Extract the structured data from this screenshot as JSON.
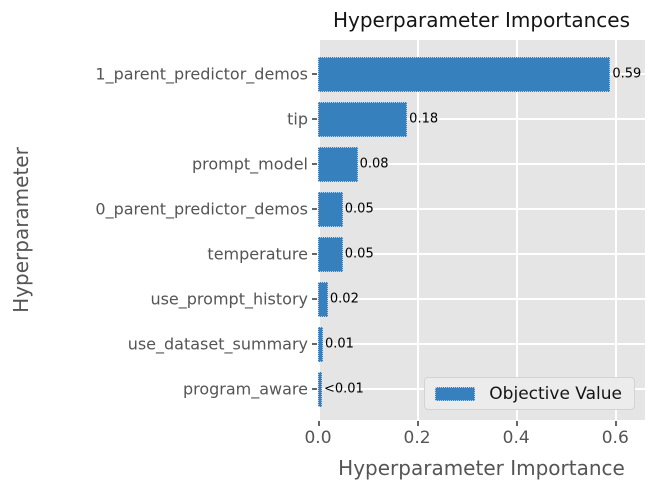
{
  "chart_data": {
    "type": "bar",
    "orientation": "horizontal",
    "title": "Hyperparameter Importances",
    "xlabel": "Hyperparameter Importance",
    "ylabel": "Hyperparameter",
    "categories": [
      "1_parent_predictor_demos",
      "tip",
      "prompt_model",
      "0_parent_predictor_demos",
      "temperature",
      "use_prompt_history",
      "use_dataset_summary",
      "program_aware"
    ],
    "values": [
      0.59,
      0.18,
      0.08,
      0.05,
      0.05,
      0.02,
      0.01,
      0.008
    ],
    "bar_labels": [
      "0.59",
      "0.18",
      "0.08",
      "0.05",
      "0.05",
      "0.02",
      "0.01",
      "<0.01"
    ],
    "x_ticks": {
      "labels": [
        "0.0",
        "0.2",
        "0.4",
        "0.6"
      ],
      "values": [
        0.0,
        0.2,
        0.4,
        0.6
      ]
    },
    "xlim": [
      0,
      0.66
    ],
    "grid": true,
    "legend": {
      "label": "Objective Value",
      "position": "lower-right"
    }
  },
  "colors": {
    "bar": "#3580bd",
    "plot_background": "#e5e5e5",
    "gridline": "#ffffff",
    "tick_text": "#555555",
    "title_text": "#141414",
    "value_text": "#000000"
  }
}
